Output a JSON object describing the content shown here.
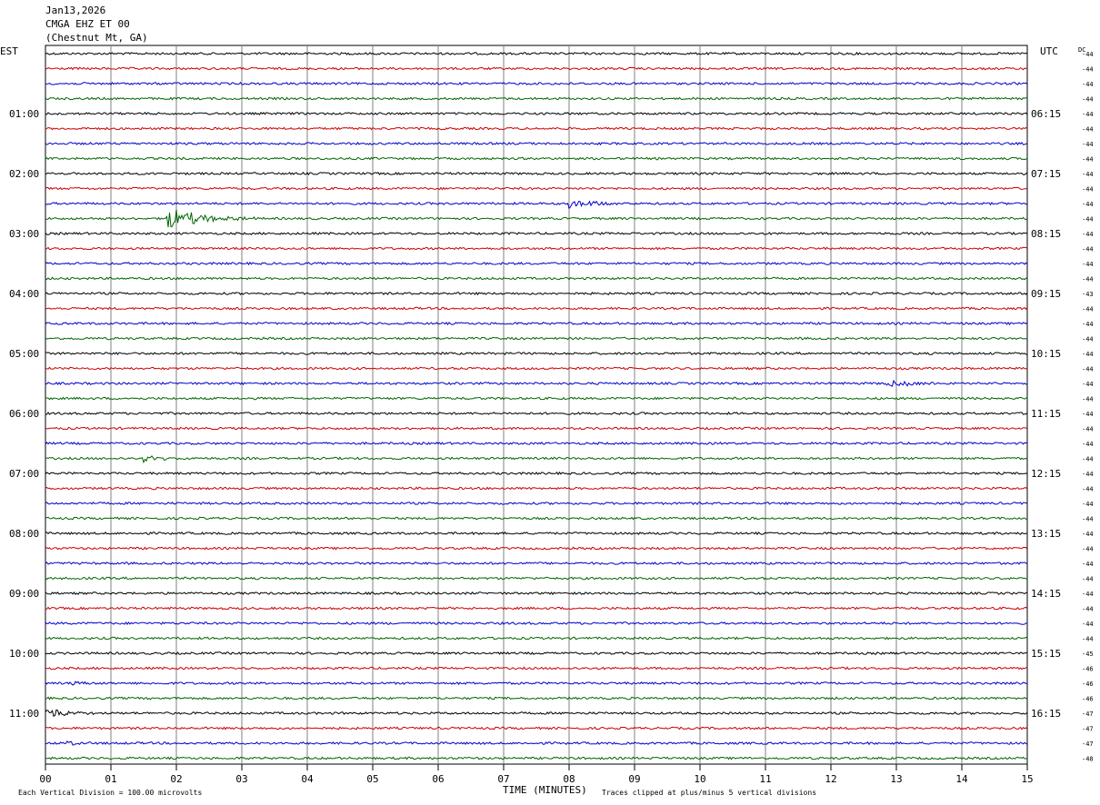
{
  "header": {
    "date": "Jan13,2026",
    "station": "CMGA EHZ ET 00",
    "location": "(Chestnut Mt, GA)"
  },
  "axis": {
    "left_tz": "EST",
    "right_tz": "UTC",
    "dc_label": "DC",
    "xlabel": "TIME (MINUTES)",
    "x_ticks": [
      "00",
      "01",
      "02",
      "03",
      "04",
      "05",
      "06",
      "07",
      "08",
      "09",
      "10",
      "11",
      "12",
      "13",
      "14",
      "15"
    ],
    "footer_left": "Each Vertical Division =  100.00 microvolts",
    "footer_right": "Traces clipped at plus/minus 5 vertical divisions"
  },
  "colors": [
    "#000000",
    "#cc0000",
    "#0000cc",
    "#006600"
  ],
  "chart_data": {
    "type": "line",
    "title": "",
    "xlabel": "TIME (MINUTES)",
    "xlim": [
      0,
      15
    ],
    "rows_per_hour": 4,
    "row_minutes": 15,
    "left_hour_labels": [
      "01:00",
      "02:00",
      "03:00",
      "04:00",
      "05:00",
      "06:00",
      "07:00",
      "08:00",
      "09:00",
      "10:00",
      "11:00"
    ],
    "right_hour_labels": [
      "06:15",
      "07:15",
      "08:15",
      "09:15",
      "10:15",
      "11:15",
      "12:15",
      "13:15",
      "14:15",
      "15:15",
      "16:15"
    ],
    "dc_offsets": [
      -44,
      -44,
      -44,
      -44,
      -44,
      -44,
      -44,
      -44,
      -44,
      -44,
      -44,
      -44,
      -44,
      -44,
      -44,
      -44,
      -43,
      -44,
      -44,
      -44,
      -44,
      -44,
      -44,
      -44,
      -44,
      -44,
      -44,
      -44,
      -44,
      -44,
      -44,
      -44,
      -44,
      -44,
      -44,
      -44,
      -44,
      -44,
      -44,
      -44,
      -45,
      -46,
      -46,
      -46,
      -47,
      -47,
      -47,
      -48
    ],
    "events": [
      {
        "row": 11,
        "start_min": 1.85,
        "end_min": 3.2,
        "amp": 11
      },
      {
        "row": 10,
        "start_min": 8.0,
        "end_min": 8.9,
        "amp": 5
      },
      {
        "row": 27,
        "start_min": 1.5,
        "end_min": 2.3,
        "amp": 4
      },
      {
        "row": 44,
        "start_min": 0.0,
        "end_min": 0.8,
        "amp": 6
      },
      {
        "row": 42,
        "start_min": 0.4,
        "end_min": 0.9,
        "amp": 3
      },
      {
        "row": 46,
        "start_min": 0.3,
        "end_min": 0.7,
        "amp": 3
      },
      {
        "row": 22,
        "start_min": 12.8,
        "end_min": 15.0,
        "amp": 2.5
      }
    ]
  }
}
